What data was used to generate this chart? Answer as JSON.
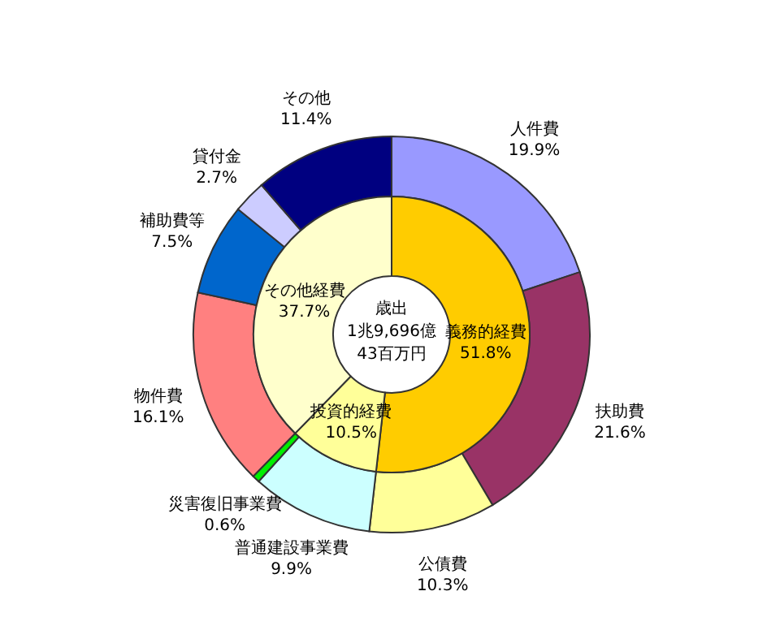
{
  "chart_data": [
    {
      "type": "donut",
      "title": "歳出",
      "annotations": [
        "1兆9,696億",
        "43百万円"
      ],
      "categories": [
        "義務的経費",
        "投資的経費",
        "その他経費"
      ],
      "values": [
        51.8,
        10.5,
        37.7
      ],
      "colors": [
        "#ffcc00",
        "#ffff99",
        "#ffffcc"
      ],
      "value_labels": [
        "51.8%",
        "10.5%",
        "37.7%"
      ]
    },
    {
      "type": "donut",
      "categories": [
        "人件費",
        "扶助費",
        "公債費",
        "普通建設事業費",
        "災害復旧事業費",
        "物件費",
        "補助費等",
        "貸付金",
        "その他"
      ],
      "values": [
        19.9,
        21.6,
        10.3,
        9.9,
        0.6,
        16.1,
        7.5,
        2.7,
        11.4
      ],
      "colors": [
        "#9999ff",
        "#993366",
        "#ffff99",
        "#ccffff",
        "#00ee00",
        "#ff8080",
        "#0066cc",
        "#ccccff",
        "#000080"
      ],
      "value_labels": [
        "19.9%",
        "21.6%",
        "10.3%",
        "9.9%",
        "0.6%",
        "16.1%",
        "7.5%",
        "2.7%",
        "11.4%"
      ]
    }
  ]
}
